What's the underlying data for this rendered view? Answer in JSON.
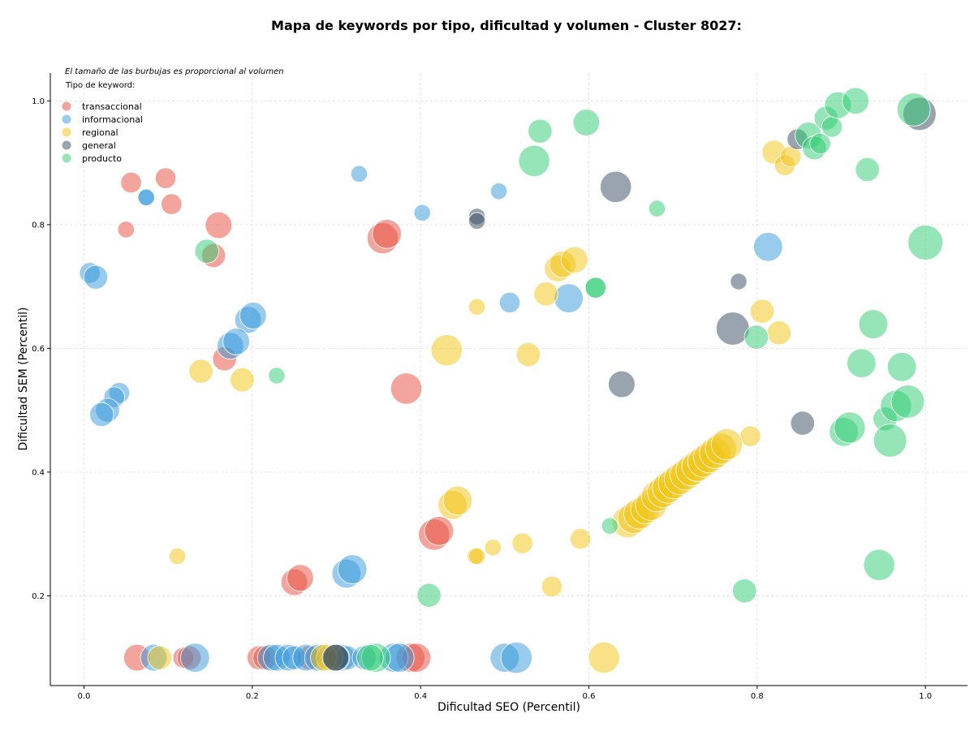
{
  "chart_data": {
    "type": "scatter",
    "title": "Mapa de keywords por tipo, dificultad y volumen - Cluster 8027:",
    "xlabel": "Dificultad SEO (Percentil)",
    "ylabel": "Dificultad SEM (Percentil)",
    "note": "El tamaño de las burbujas es proporcional al volumen",
    "legend_title": "Tipo de keyword:",
    "legend_placement": "top-left",
    "grid": true,
    "xlim": [
      -0.04,
      1.05
    ],
    "ylim": [
      0.055,
      1.045
    ],
    "xticks": [
      "0.0",
      "0.2",
      "0.4",
      "0.6",
      "0.8",
      "1.0"
    ],
    "yticks": [
      "0.2",
      "0.4",
      "0.6",
      "0.8",
      "1.0"
    ],
    "series": [
      {
        "name": "transaccional",
        "color": "#e74c3c",
        "points": [
          [
            0.056,
            0.868,
            2
          ],
          [
            0.097,
            0.875,
            2
          ],
          [
            0.104,
            0.833,
            2
          ],
          [
            0.05,
            0.792,
            1
          ],
          [
            0.16,
            0.799,
            4
          ],
          [
            0.154,
            0.75,
            3
          ],
          [
            0.167,
            0.583,
            3
          ],
          [
            0.355,
            0.778,
            6
          ],
          [
            0.36,
            0.785,
            5
          ],
          [
            0.383,
            0.535,
            6
          ],
          [
            0.416,
            0.299,
            6
          ],
          [
            0.422,
            0.305,
            5
          ],
          [
            0.25,
            0.222,
            4
          ],
          [
            0.257,
            0.229,
            4
          ],
          [
            0.063,
            0.1,
            4
          ],
          [
            0.118,
            0.1,
            2
          ],
          [
            0.125,
            0.1,
            3
          ],
          [
            0.208,
            0.1,
            3
          ],
          [
            0.215,
            0.1,
            3
          ],
          [
            0.268,
            0.1,
            3
          ],
          [
            0.388,
            0.1,
            5
          ],
          [
            0.395,
            0.1,
            5
          ]
        ]
      },
      {
        "name": "informacional",
        "color": "#3498db",
        "points": [
          [
            0.074,
            0.844,
            1
          ],
          [
            0.074,
            0.844,
            1
          ],
          [
            0.327,
            0.882,
            1
          ],
          [
            0.402,
            0.819,
            1
          ],
          [
            0.493,
            0.854,
            1
          ],
          [
            0.007,
            0.722,
            2
          ],
          [
            0.014,
            0.715,
            3
          ],
          [
            0.195,
            0.646,
            4
          ],
          [
            0.201,
            0.653,
            4
          ],
          [
            0.174,
            0.604,
            4
          ],
          [
            0.181,
            0.611,
            4
          ],
          [
            0.042,
            0.528,
            2
          ],
          [
            0.036,
            0.521,
            2
          ],
          [
            0.028,
            0.5,
            3
          ],
          [
            0.021,
            0.493,
            3
          ],
          [
            0.506,
            0.674,
            2
          ],
          [
            0.576,
            0.681,
            5
          ],
          [
            0.813,
            0.764,
            5
          ],
          [
            0.312,
            0.236,
            5
          ],
          [
            0.319,
            0.243,
            5
          ],
          [
            0.083,
            0.1,
            4
          ],
          [
            0.132,
            0.1,
            5
          ],
          [
            0.222,
            0.1,
            4
          ],
          [
            0.229,
            0.1,
            4
          ],
          [
            0.243,
            0.1,
            4
          ],
          [
            0.25,
            0.1,
            3
          ],
          [
            0.264,
            0.1,
            4
          ],
          [
            0.278,
            0.1,
            4
          ],
          [
            0.306,
            0.1,
            4
          ],
          [
            0.313,
            0.1,
            3
          ],
          [
            0.333,
            0.1,
            3
          ],
          [
            0.368,
            0.1,
            5
          ],
          [
            0.375,
            0.1,
            5
          ],
          [
            0.5,
            0.1,
            5
          ],
          [
            0.514,
            0.1,
            6
          ]
        ]
      },
      {
        "name": "regional",
        "color": "#f1c40f",
        "points": [
          [
            0.111,
            0.264,
            1
          ],
          [
            0.139,
            0.563,
            3
          ],
          [
            0.188,
            0.549,
            3
          ],
          [
            0.431,
            0.597,
            6
          ],
          [
            0.438,
            0.347,
            5
          ],
          [
            0.444,
            0.354,
            5
          ],
          [
            0.467,
            0.667,
            1
          ],
          [
            0.465,
            0.264,
            1
          ],
          [
            0.467,
            0.264,
            1
          ],
          [
            0.486,
            0.278,
            1
          ],
          [
            0.521,
            0.285,
            2
          ],
          [
            0.528,
            0.59,
            3
          ],
          [
            0.549,
            0.688,
            3
          ],
          [
            0.563,
            0.729,
            4
          ],
          [
            0.569,
            0.736,
            4
          ],
          [
            0.583,
            0.743,
            4
          ],
          [
            0.556,
            0.215,
            2
          ],
          [
            0.59,
            0.292,
            2
          ],
          [
            0.618,
            0.1,
            6
          ],
          [
            0.09,
            0.1,
            3
          ],
          [
            0.292,
            0.1,
            4
          ],
          [
            0.285,
            0.1,
            4
          ],
          [
            0.82,
            0.917,
            3
          ],
          [
            0.833,
            0.896,
            2
          ],
          [
            0.84,
            0.91,
            2
          ],
          [
            0.806,
            0.66,
            3
          ],
          [
            0.826,
            0.625,
            3
          ],
          [
            0.792,
            0.458,
            2
          ],
          [
            0.646,
            0.319,
            6
          ],
          [
            0.653,
            0.326,
            6
          ],
          [
            0.66,
            0.333,
            6
          ],
          [
            0.667,
            0.34,
            5
          ],
          [
            0.674,
            0.347,
            6
          ],
          [
            0.681,
            0.361,
            6
          ],
          [
            0.688,
            0.368,
            6
          ],
          [
            0.694,
            0.375,
            6
          ],
          [
            0.701,
            0.382,
            6
          ],
          [
            0.708,
            0.389,
            6
          ],
          [
            0.715,
            0.396,
            6
          ],
          [
            0.722,
            0.403,
            6
          ],
          [
            0.729,
            0.41,
            6
          ],
          [
            0.736,
            0.417,
            6
          ],
          [
            0.743,
            0.424,
            6
          ],
          [
            0.75,
            0.431,
            6
          ],
          [
            0.757,
            0.438,
            6
          ],
          [
            0.764,
            0.445,
            6
          ]
        ]
      },
      {
        "name": "general",
        "color": "#34495e",
        "points": [
          [
            0.467,
            0.813,
            1
          ],
          [
            0.467,
            0.806,
            1
          ],
          [
            0.632,
            0.861,
            6
          ],
          [
            0.639,
            0.542,
            4
          ],
          [
            0.771,
            0.632,
            7
          ],
          [
            0.778,
            0.708,
            1
          ],
          [
            0.854,
            0.479,
            3
          ],
          [
            0.848,
            0.938,
            2
          ],
          [
            0.993,
            0.979,
            7
          ],
          [
            0.3,
            0.1,
            4
          ],
          [
            0.299,
            0.1,
            4
          ]
        ]
      },
      {
        "name": "producto",
        "color": "#2ecc71",
        "points": [
          [
            0.146,
            0.757,
            3
          ],
          [
            0.229,
            0.556,
            1
          ],
          [
            0.41,
            0.201,
            3
          ],
          [
            0.535,
            0.903,
            6
          ],
          [
            0.542,
            0.951,
            3
          ],
          [
            0.597,
            0.965,
            4
          ],
          [
            0.608,
            0.698,
            2
          ],
          [
            0.608,
            0.698,
            2
          ],
          [
            0.625,
            0.313,
            1
          ],
          [
            0.681,
            0.826,
            1
          ],
          [
            0.785,
            0.208,
            3
          ],
          [
            0.799,
            0.618,
            3
          ],
          [
            0.861,
            0.944,
            4
          ],
          [
            0.868,
            0.924,
            3
          ],
          [
            0.875,
            0.931,
            2
          ],
          [
            0.882,
            0.972,
            3
          ],
          [
            0.889,
            0.958,
            2
          ],
          [
            0.896,
            0.993,
            4
          ],
          [
            0.917,
            1.0,
            4
          ],
          [
            0.931,
            0.889,
            3
          ],
          [
            0.938,
            0.639,
            5
          ],
          [
            0.924,
            0.576,
            5
          ],
          [
            0.903,
            0.465,
            5
          ],
          [
            0.91,
            0.472,
            6
          ],
          [
            0.945,
            0.25,
            6
          ],
          [
            0.952,
            0.486,
            3
          ],
          [
            0.958,
            0.451,
            7
          ],
          [
            0.965,
            0.507,
            6
          ],
          [
            0.972,
            0.57,
            5
          ],
          [
            0.979,
            0.514,
            7
          ],
          [
            0.986,
            0.986,
            7
          ],
          [
            1.0,
            0.771,
            8
          ],
          [
            0.347,
            0.1,
            5
          ],
          [
            0.34,
            0.1,
            4
          ]
        ]
      }
    ]
  }
}
